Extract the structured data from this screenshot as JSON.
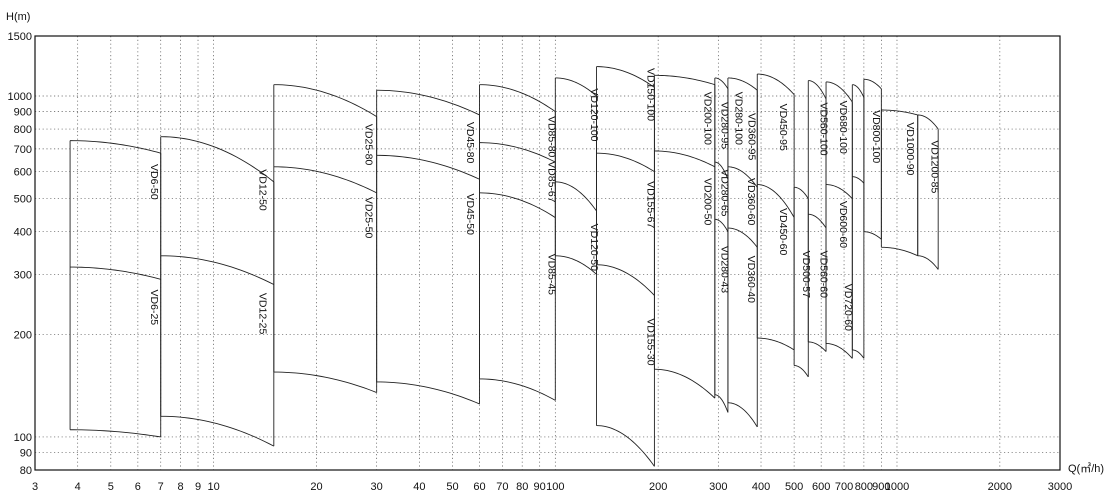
{
  "chart_data": {
    "type": "line",
    "title": "",
    "xlabel": "Q(㎥/h)",
    "ylabel": "H(m)",
    "x_scale": "log",
    "y_scale": "log",
    "xlim": [
      3,
      3000
    ],
    "ylim": [
      80,
      1500
    ],
    "grid": true,
    "x_ticks": [
      {
        "v": 3,
        "t": "3"
      },
      {
        "v": 4,
        "t": "4"
      },
      {
        "v": 5,
        "t": "5"
      },
      {
        "v": 6,
        "t": "6"
      },
      {
        "v": 7,
        "t": "7"
      },
      {
        "v": 8,
        "t": "8"
      },
      {
        "v": 9,
        "t": "9"
      },
      {
        "v": 10,
        "t": "10"
      },
      {
        "v": 20,
        "t": "20"
      },
      {
        "v": 30,
        "t": "30"
      },
      {
        "v": 40,
        "t": "40"
      },
      {
        "v": 50,
        "t": "50"
      },
      {
        "v": 60,
        "t": "60"
      },
      {
        "v": 70,
        "t": "70"
      },
      {
        "v": 80,
        "t": "80"
      },
      {
        "v": 90,
        "t": "90"
      },
      {
        "v": 100,
        "t": "100"
      },
      {
        "v": 200,
        "t": "200"
      },
      {
        "v": 300,
        "t": "300"
      },
      {
        "v": 400,
        "t": "400"
      },
      {
        "v": 500,
        "t": "500"
      },
      {
        "v": 600,
        "t": "600"
      },
      {
        "v": 700,
        "t": "700"
      },
      {
        "v": 800,
        "t": "800"
      },
      {
        "v": 900,
        "t": "900"
      },
      {
        "v": 1000,
        "t": "1000"
      },
      {
        "v": 2000,
        "t": "2000"
      },
      {
        "v": 3000,
        "t": "3000"
      }
    ],
    "y_ticks": [
      {
        "v": 80,
        "t": "80"
      },
      {
        "v": 90,
        "t": "90"
      },
      {
        "v": 100,
        "t": "100"
      },
      {
        "v": 200,
        "t": "200"
      },
      {
        "v": 300,
        "t": "300"
      },
      {
        "v": 400,
        "t": "400"
      },
      {
        "v": 500,
        "t": "500"
      },
      {
        "v": 600,
        "t": "600"
      },
      {
        "v": 700,
        "t": "700"
      },
      {
        "v": 800,
        "t": "800"
      },
      {
        "v": 900,
        "t": "900"
      },
      {
        "v": 1000,
        "t": "1000"
      },
      {
        "v": 1500,
        "t": "1500"
      }
    ],
    "bands": [
      {
        "q": [
          3.8,
          7.0
        ],
        "curves": [
          [
            740,
            680
          ],
          [
            315,
            290
          ],
          [
            105,
            100
          ]
        ],
        "labels": [
          {
            "t": "VD6-50",
            "q": 6.55,
            "h": 560
          },
          {
            "t": "VD6-25",
            "q": 6.55,
            "h": 240
          }
        ]
      },
      {
        "q": [
          7.0,
          15.0
        ],
        "curves": [
          [
            760,
            560
          ],
          [
            340,
            280
          ],
          [
            115,
            94
          ]
        ],
        "labels": [
          {
            "t": "VD12-50",
            "q": 13.6,
            "h": 530
          },
          {
            "t": "VD12-25",
            "q": 13.6,
            "h": 230
          }
        ]
      },
      {
        "q": [
          15.0,
          30.0
        ],
        "curves": [
          [
            1080,
            870
          ],
          [
            620,
            520
          ],
          [
            155,
            135
          ]
        ],
        "labels": [
          {
            "t": "VD25-80",
            "q": 27.8,
            "h": 720
          },
          {
            "t": "VD25-50",
            "q": 27.8,
            "h": 440
          }
        ]
      },
      {
        "q": [
          30.0,
          60.0
        ],
        "curves": [
          [
            1040,
            880
          ],
          [
            670,
            570
          ],
          [
            145,
            125
          ]
        ],
        "labels": [
          {
            "t": "VD45-80",
            "q": 55.2,
            "h": 730
          },
          {
            "t": "VD45-50",
            "q": 55.2,
            "h": 450
          }
        ]
      },
      {
        "q": [
          60.0,
          100.0
        ],
        "curves": [
          [
            1080,
            900
          ],
          [
            730,
            640
          ],
          [
            520,
            440
          ],
          [
            148,
            128
          ]
        ],
        "labels": [
          {
            "t": "VD85-80",
            "q": 95.5,
            "h": 760
          },
          {
            "t": "VD85-67",
            "q": 95.5,
            "h": 560
          },
          {
            "t": "VD85-45",
            "q": 95.5,
            "h": 300
          }
        ]
      },
      {
        "q": [
          100.0,
          132.0
        ],
        "curves": [
          [
            1130,
            1000
          ],
          [
            560,
            460
          ],
          [
            340,
            300
          ]
        ],
        "labels": [
          {
            "t": "VD120-100",
            "q": 127,
            "h": 880
          },
          {
            "t": "VD120-50",
            "q": 127,
            "h": 360
          }
        ]
      },
      {
        "q": [
          132.0,
          195.0
        ],
        "curves": [
          [
            1220,
            1060
          ],
          [
            680,
            600
          ],
          [
            320,
            260
          ],
          [
            108,
            82
          ]
        ],
        "labels": [
          {
            "t": "VD150-100",
            "q": 186,
            "h": 1010
          },
          {
            "t": "VD155-67",
            "q": 186,
            "h": 480
          },
          {
            "t": "VD155-30",
            "q": 186,
            "h": 190
          }
        ]
      },
      {
        "q": [
          195.0,
          293.0
        ],
        "curves": [
          [
            1150,
            1080
          ],
          [
            690,
            620
          ],
          [
            158,
            130
          ]
        ],
        "labels": [
          {
            "t": "VD200-100",
            "q": 273,
            "h": 860
          },
          {
            "t": "VD200-50",
            "q": 273,
            "h": 490
          }
        ]
      },
      {
        "q": [
          293.0,
          320.0
        ],
        "curves": [
          [
            1130,
            1050
          ],
          [
            640,
            570
          ],
          [
            435,
            400
          ],
          [
            133,
            118
          ]
        ],
        "labels": [
          {
            "t": "VD280-95",
            "q": 306,
            "h": 820
          },
          {
            "t": "VD280-65",
            "q": 306,
            "h": 520
          },
          {
            "t": "VD280-43",
            "q": 306,
            "h": 310
          }
        ]
      },
      {
        "q": [
          320.0,
          390.0
        ],
        "curves": [
          [
            1130,
            1040
          ],
          [
            620,
            540
          ],
          [
            410,
            360
          ],
          [
            126,
            107
          ]
        ],
        "labels": [
          {
            "t": "VD280-100",
            "q": 337,
            "h": 860
          },
          {
            "t": "VD360-95",
            "q": 367,
            "h": 760
          },
          {
            "t": "VD360-60",
            "q": 367,
            "h": 490
          },
          {
            "t": "VD360-40",
            "q": 367,
            "h": 290
          }
        ]
      },
      {
        "q": [
          390.0,
          500.0
        ],
        "curves": [
          [
            1160,
            1010
          ],
          [
            550,
            440
          ],
          [
            195,
            180
          ]
        ],
        "labels": [
          {
            "t": "VD450-95",
            "q": 455,
            "h": 810
          },
          {
            "t": "VD450-60",
            "q": 455,
            "h": 400
          }
        ]
      },
      {
        "q": [
          500.0,
          550.0
        ],
        "curves": [
          [
            540,
            500
          ],
          [
            162,
            150
          ]
        ],
        "labels": [
          {
            "t": "VD500-57",
            "q": 530,
            "h": 300
          }
        ]
      },
      {
        "q": [
          550.0,
          620.0
        ],
        "curves": [
          [
            1110,
            980
          ],
          [
            450,
            410
          ],
          [
            190,
            178
          ]
        ],
        "labels": [
          {
            "t": "VD560-100",
            "q": 598,
            "h": 800
          },
          {
            "t": "VD560-60",
            "q": 598,
            "h": 300
          }
        ]
      },
      {
        "q": [
          620.0,
          740.0
        ],
        "curves": [
          [
            1100,
            960
          ],
          [
            550,
            500
          ],
          [
            188,
            170
          ]
        ],
        "labels": [
          {
            "t": "VD680-100",
            "q": 680,
            "h": 810
          },
          {
            "t": "VD600-60",
            "q": 680,
            "h": 420
          },
          {
            "t": "VD720-60",
            "q": 705,
            "h": 240
          }
        ]
      },
      {
        "q": [
          740.0,
          800.0
        ],
        "curves": [
          [
            1080,
            990
          ],
          [
            580,
            555
          ],
          [
            180,
            170
          ]
        ],
        "labels": []
      },
      {
        "q": [
          800.0,
          900.0
        ],
        "curves": [
          [
            1120,
            1050
          ],
          [
            400,
            380
          ]
        ],
        "labels": [
          {
            "t": "VD800-100",
            "q": 850,
            "h": 760
          }
        ]
      },
      {
        "q": [
          900.0,
          1150.0
        ],
        "curves": [
          [
            910,
            880
          ],
          [
            360,
            340
          ]
        ],
        "labels": [
          {
            "t": "VD1000-90",
            "q": 1070,
            "h": 700
          }
        ]
      },
      {
        "q": [
          1150.0,
          1320.0
        ],
        "curves": [
          [
            880,
            800
          ],
          [
            340,
            310
          ]
        ],
        "labels": [
          {
            "t": "VD1200-85",
            "q": 1260,
            "h": 620
          }
        ]
      }
    ]
  }
}
